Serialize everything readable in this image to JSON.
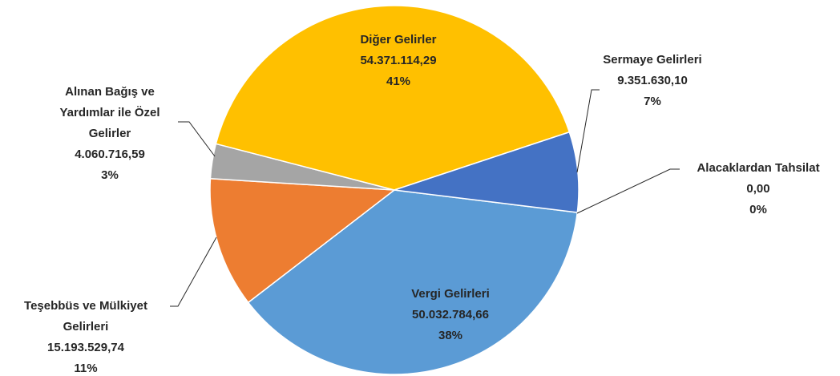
{
  "chart_data": {
    "type": "pie",
    "categories": [
      "Vergi Gelirleri",
      "Teşebbüs ve Mülkiyet Gelirleri",
      "Alınan Bağış ve Yardımlar ile Özel Gelirler",
      "Diğer Gelirler",
      "Sermaye Gelirleri",
      "Alacaklardan Tahsilat"
    ],
    "values": [
      50032784.66,
      15193529.74,
      4060716.59,
      54371114.29,
      9351630.1,
      0
    ],
    "value_labels": [
      "50.032.784,66",
      "15.193.529,74",
      "4.060.716,59",
      "54.371.114,29",
      "9.351.630,10",
      "0,00"
    ],
    "percentages": [
      38,
      11,
      3,
      41,
      7,
      0
    ],
    "percentage_labels": [
      "38%",
      "11%",
      "3%",
      "41%",
      "7%",
      "0%"
    ],
    "colors": [
      "#5b9bd5",
      "#ed7d31",
      "#a5a5a5",
      "#ffc000",
      "#4472c4",
      "#70ad47"
    ]
  }
}
